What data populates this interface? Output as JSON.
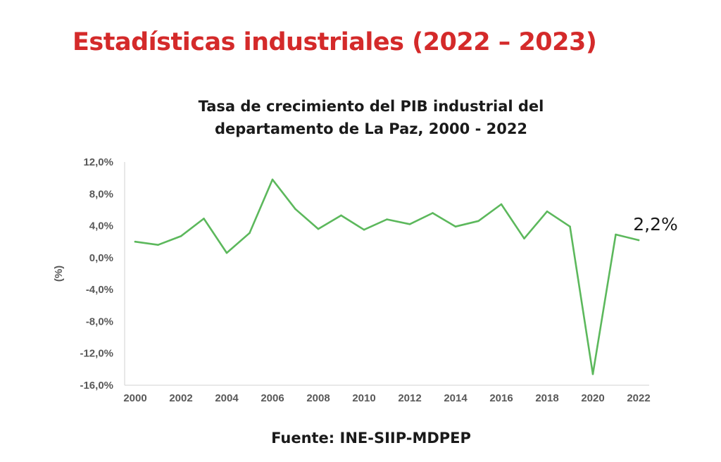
{
  "page": {
    "title": "Estadísticas industriales (2022 – 2023)",
    "title_color": "#d42a2a"
  },
  "source_text": "Fuente: INE-SIIP-MDPEP",
  "chart_data": {
    "type": "line",
    "title_line1": "Tasa de crecimiento del PIB industrial del",
    "title_line2": "departamento de La Paz, 2000 - 2022",
    "xlabel": "",
    "ylabel": "(%)",
    "x": [
      2000,
      2001,
      2002,
      2003,
      2004,
      2005,
      2006,
      2007,
      2008,
      2009,
      2010,
      2011,
      2012,
      2013,
      2014,
      2015,
      2016,
      2017,
      2018,
      2019,
      2020,
      2021,
      2022
    ],
    "x_tick_labels": [
      "2000",
      "2002",
      "2004",
      "2006",
      "2008",
      "2010",
      "2012",
      "2014",
      "2016",
      "2018",
      "2020",
      "2022"
    ],
    "series": [
      {
        "values": [
          2.0,
          1.6,
          2.7,
          4.9,
          0.6,
          3.1,
          9.8,
          6.1,
          3.6,
          5.3,
          3.5,
          4.8,
          4.2,
          5.6,
          3.9,
          4.6,
          6.7,
          2.4,
          5.8,
          3.9,
          -14.6,
          2.9,
          2.2
        ],
        "color": "#5cb85c"
      }
    ],
    "ylim": [
      -16,
      12
    ],
    "y_ticks": [
      12,
      8,
      4,
      0,
      -4,
      -8,
      -12,
      -16
    ],
    "y_tick_labels": [
      "12,0%",
      "8,0%",
      "4,0%",
      "0,0%",
      "-4,0%",
      "-8,0%",
      "-12,0%",
      "-16,0%"
    ],
    "annotation": {
      "text": "2,2%",
      "x": 2022,
      "y": 2.2
    },
    "grid": false,
    "legend": "none"
  }
}
